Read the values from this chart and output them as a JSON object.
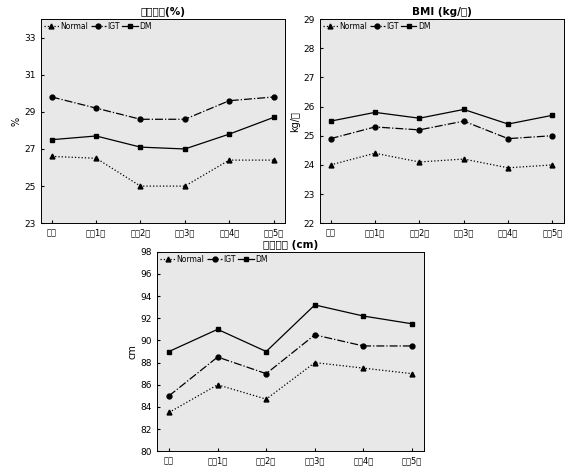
{
  "x_labels": [
    "기초",
    "추적1기",
    "추적2기",
    "추적3기",
    "추적4기",
    "추적5기"
  ],
  "chart1": {
    "title": "체지방률(%)",
    "ylabel": "%",
    "ylim": [
      23,
      34
    ],
    "yticks": [
      23,
      25,
      27,
      29,
      31,
      33
    ],
    "normal": [
      26.6,
      26.5,
      25.0,
      25.0,
      26.4,
      26.4
    ],
    "igt": [
      29.8,
      29.2,
      28.6,
      28.6,
      29.6,
      29.8
    ],
    "dm": [
      27.5,
      27.7,
      27.1,
      27.0,
      27.8,
      28.7
    ]
  },
  "chart2": {
    "title": "BMI (kg/㎡)",
    "ylabel": "kg/㎡",
    "ylim": [
      22,
      29
    ],
    "yticks": [
      22,
      23,
      24,
      25,
      26,
      27,
      28,
      29
    ],
    "normal": [
      24.0,
      24.4,
      24.1,
      24.2,
      23.9,
      24.0
    ],
    "igt": [
      24.9,
      25.3,
      25.2,
      25.5,
      24.9,
      25.0
    ],
    "dm": [
      25.5,
      25.8,
      25.6,
      25.9,
      25.4,
      25.7
    ]
  },
  "chart3": {
    "title": "허리둘레 (cm)",
    "ylabel": "cm",
    "ylim": [
      80,
      98
    ],
    "yticks": [
      80,
      82,
      84,
      86,
      88,
      90,
      92,
      94,
      96,
      98
    ],
    "normal": [
      83.5,
      86.0,
      84.7,
      88.0,
      87.5,
      87.0
    ],
    "igt": [
      85.0,
      88.5,
      87.0,
      90.5,
      89.5,
      89.5
    ],
    "dm": [
      89.0,
      91.0,
      89.0,
      93.2,
      92.2,
      91.5
    ]
  },
  "legend_labels": [
    "Normal",
    "IGT",
    "DM"
  ],
  "background": "#e8e8e8"
}
